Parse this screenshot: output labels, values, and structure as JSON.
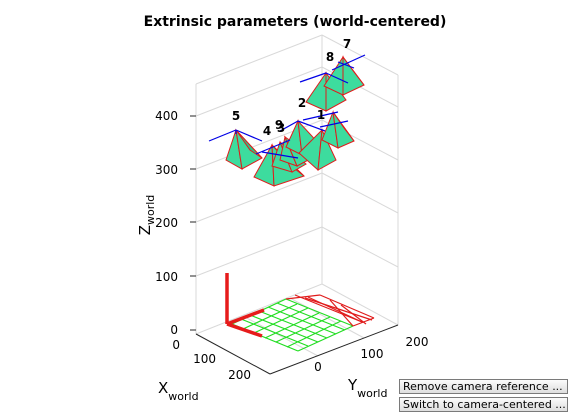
{
  "figure": {
    "title": "Extrinsic parameters (world-centered)",
    "z_label": "Z",
    "z_label_sub": "world",
    "x_label": "X",
    "x_label_sub": "world",
    "y_label": "Y",
    "y_label_sub": "world",
    "z_ticks": [
      "0",
      "100",
      "200",
      "300",
      "400"
    ],
    "x_ticks": [
      "0",
      "100",
      "200"
    ],
    "y_ticks": [
      "0",
      "100",
      "200"
    ],
    "camera_labels": [
      "1",
      "2",
      "3",
      "4",
      "5",
      "7",
      "8",
      "9"
    ]
  },
  "buttons": {
    "remove_label": "Remove camera reference ...",
    "switch_label": "Switch to camera-centered ..."
  },
  "colors": {
    "camera_fill": "#3ddc9e",
    "camera_edge": "#e01b1b",
    "camera_axis": "#0000e6",
    "grid_green": "#22dd22",
    "grid_red": "#e01b1b",
    "world_axis": "#e61b1b"
  }
}
